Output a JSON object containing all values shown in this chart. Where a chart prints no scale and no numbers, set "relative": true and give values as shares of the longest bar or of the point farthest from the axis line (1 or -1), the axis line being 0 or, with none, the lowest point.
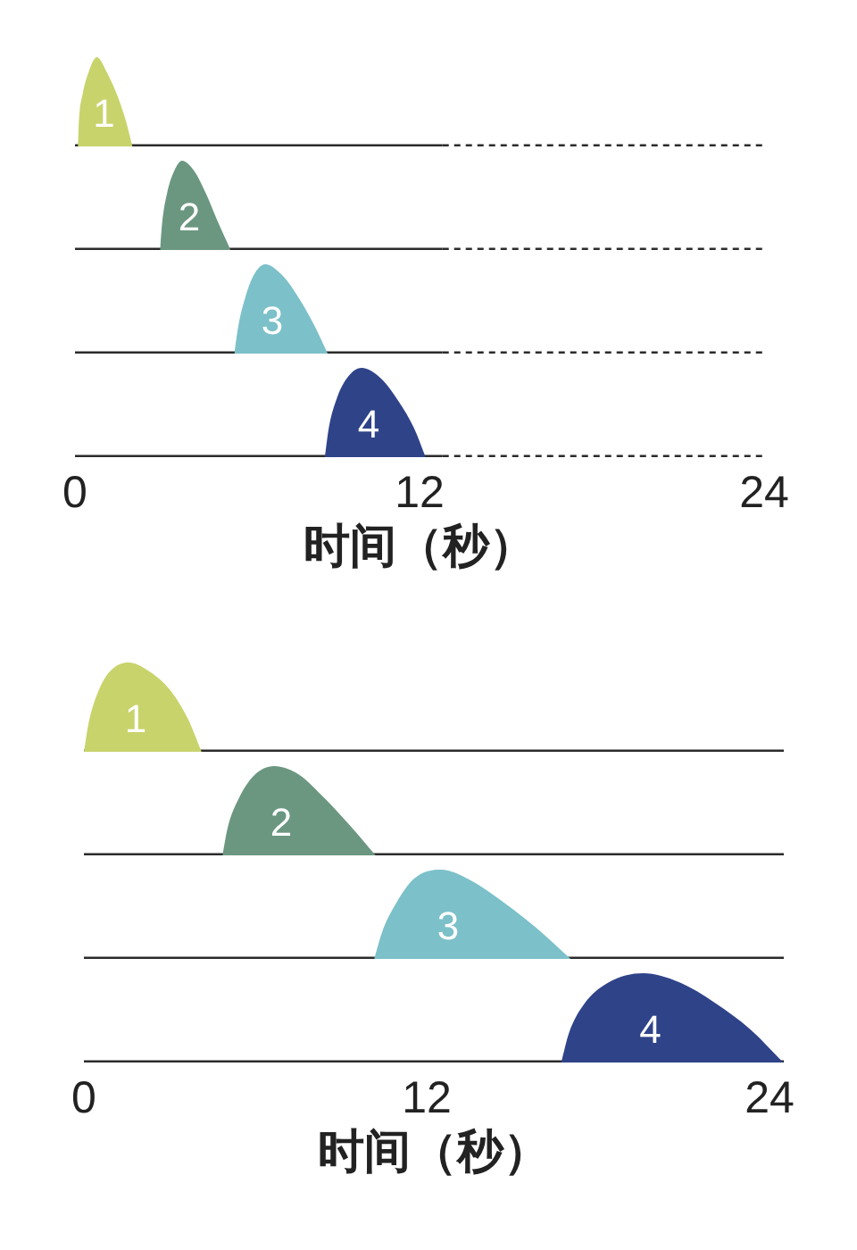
{
  "chart_data": [
    {
      "type": "area",
      "relative": true,
      "xlim": [
        0,
        24
      ],
      "tick_labels": false,
      "series": [
        {
          "name": "1",
          "color": "#c8d36b",
          "x": [
            0.1,
            0.14,
            0.27,
            0.45,
            0.76,
            1.14,
            1.45,
            1.76,
            2.0
          ],
          "values": [
            0,
            0.3,
            0.59,
            0.81,
            1,
            0.81,
            0.59,
            0.3,
            0
          ]
        },
        {
          "type": "line",
          "color": "#2b2b2b",
          "x": [
            0,
            12.8
          ],
          "values": [
            0,
            0
          ]
        },
        {
          "type": "line",
          "color": "#2b2b2b",
          "x": [
            12.8,
            24
          ],
          "values": [
            0,
            0
          ],
          "line_style": "dotted"
        }
      ]
    },
    {
      "type": "area",
      "relative": true,
      "xlim": [
        0,
        24
      ],
      "tick_labels": false,
      "series": [
        {
          "name": "2",
          "color": "#6b9781",
          "x": [
            2.96,
            3.04,
            3.21,
            3.42,
            3.73,
            4.14,
            4.55,
            4.97,
            5.42
          ],
          "values": [
            0,
            0.32,
            0.64,
            0.86,
            1,
            0.89,
            0.64,
            0.32,
            0
          ]
        },
        {
          "type": "line",
          "color": "#2b2b2b",
          "x": [
            0,
            12.8
          ],
          "values": [
            0,
            0
          ]
        },
        {
          "type": "line",
          "color": "#2b2b2b",
          "x": [
            12.8,
            24
          ],
          "values": [
            0,
            0
          ],
          "line_style": "dotted"
        }
      ]
    },
    {
      "type": "area",
      "relative": true,
      "xlim": [
        0,
        24
      ],
      "tick_labels": false,
      "series": [
        {
          "name": "3",
          "color": "#7cc0c9",
          "x": [
            5.55,
            5.69,
            5.94,
            6.21,
            6.62,
            7.24,
            7.76,
            8.28,
            8.8
          ],
          "values": [
            0,
            0.31,
            0.64,
            0.87,
            1,
            0.87,
            0.64,
            0.35,
            0
          ]
        },
        {
          "type": "line",
          "color": "#2b2b2b",
          "x": [
            0,
            12.8
          ],
          "values": [
            0,
            0
          ]
        },
        {
          "type": "line",
          "color": "#2b2b2b",
          "x": [
            12.8,
            24
          ],
          "values": [
            0,
            0
          ],
          "line_style": "dotted"
        }
      ]
    },
    {
      "type": "area",
      "relative": true,
      "xlim": [
        0,
        24
      ],
      "xticks": [
        0,
        12,
        24
      ],
      "xlabel": "时间（秒）",
      "series": [
        {
          "name": "4",
          "color": "#2f4389",
          "x": [
            8.7,
            8.84,
            9.11,
            9.46,
            9.98,
            10.66,
            11.28,
            11.8,
            12.21
          ],
          "values": [
            0,
            0.33,
            0.65,
            0.88,
            1,
            0.88,
            0.62,
            0.33,
            0
          ]
        },
        {
          "type": "line",
          "color": "#2b2b2b",
          "x": [
            0,
            12.8
          ],
          "values": [
            0,
            0
          ]
        },
        {
          "type": "line",
          "color": "#2b2b2b",
          "x": [
            12.8,
            24
          ],
          "values": [
            0,
            0
          ],
          "line_style": "dotted"
        }
      ]
    },
    {
      "type": "area",
      "relative": true,
      "xlim": [
        0,
        24.5
      ],
      "tick_labels": false,
      "series": [
        {
          "name": "1",
          "color": "#c8d36b",
          "x": [
            0,
            0.17,
            0.52,
            0.94,
            1.56,
            2.29,
            3.02,
            3.64,
            4.12
          ],
          "values": [
            0,
            0.33,
            0.69,
            0.91,
            1,
            0.9,
            0.69,
            0.37,
            0
          ]
        },
        {
          "type": "line",
          "color": "#2b2b2b",
          "x": [
            0,
            24.5
          ],
          "values": [
            0,
            0
          ]
        }
      ]
    },
    {
      "type": "area",
      "relative": true,
      "xlim": [
        0,
        24.5
      ],
      "tick_labels": false,
      "series": [
        {
          "name": "2",
          "color": "#6b9781",
          "x": [
            4.85,
            5.04,
            5.41,
            5.94,
            6.66,
            7.5,
            8.33,
            9.27,
            10.21
          ],
          "values": [
            0,
            0.32,
            0.63,
            0.89,
            1,
            0.91,
            0.67,
            0.35,
            0
          ]
        },
        {
          "type": "line",
          "color": "#2b2b2b",
          "x": [
            0,
            24.5
          ],
          "values": [
            0,
            0
          ]
        }
      ]
    },
    {
      "type": "area",
      "relative": true,
      "xlim": [
        0,
        24.5
      ],
      "tick_labels": false,
      "series": [
        {
          "name": "3",
          "color": "#7cc0c9",
          "x": [
            10.16,
            10.46,
            10.94,
            11.56,
            12.5,
            13.54,
            14.58,
            15.83,
            17.04
          ],
          "values": [
            0,
            0.32,
            0.63,
            0.9,
            1,
            0.88,
            0.66,
            0.35,
            0
          ]
        },
        {
          "type": "line",
          "color": "#2b2b2b",
          "x": [
            0,
            24.5
          ],
          "values": [
            0,
            0
          ]
        }
      ]
    },
    {
      "type": "area",
      "relative": true,
      "xlim": [
        0,
        24.5
      ],
      "xticks": [
        0,
        12,
        24
      ],
      "xlabel": "时间（秒）",
      "series": [
        {
          "name": "4",
          "color": "#2f4389",
          "x": [
            16.71,
            16.98,
            17.5,
            18.33,
            19.58,
            20.83,
            22.08,
            23.33,
            24.48
          ],
          "values": [
            0,
            0.33,
            0.65,
            0.89,
            1,
            0.9,
            0.67,
            0.37,
            0
          ]
        },
        {
          "type": "line",
          "color": "#2b2b2b",
          "x": [
            0,
            24.5
          ],
          "values": [
            0,
            0
          ]
        }
      ]
    }
  ]
}
